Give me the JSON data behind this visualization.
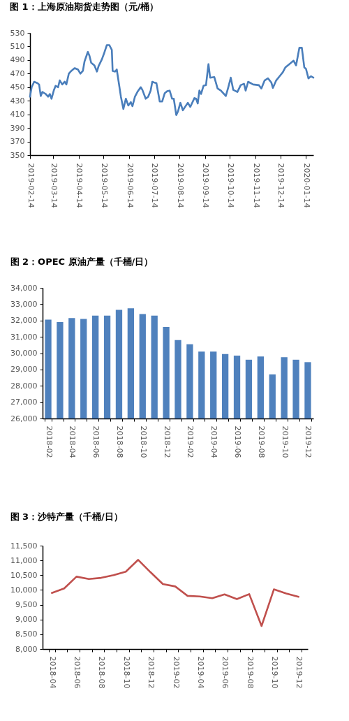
{
  "chart_data": [
    {
      "type": "line",
      "title": "图 1：上海原油期货走势图（元/桶）",
      "color": "#4a7ebb",
      "x": [
        "2019-02-14",
        "2019-02-16",
        "2019-02-19",
        "2019-02-23",
        "2019-02-25",
        "2019-02-27",
        "2019-03-01",
        "2019-03-05",
        "2019-03-08",
        "2019-03-10",
        "2019-03-12",
        "2019-03-15",
        "2019-03-17",
        "2019-03-20",
        "2019-03-22",
        "2019-03-25",
        "2019-03-28",
        "2019-03-30",
        "2019-04-02",
        "2019-04-05",
        "2019-04-09",
        "2019-04-13",
        "2019-04-16",
        "2019-04-19",
        "2019-04-21",
        "2019-04-25",
        "2019-04-27",
        "2019-04-29",
        "2019-05-03",
        "2019-05-06",
        "2019-05-08",
        "2019-05-12",
        "2019-05-15",
        "2019-05-18",
        "2019-05-21",
        "2019-05-24",
        "2019-05-25",
        "2019-05-28",
        "2019-05-30",
        "2019-06-01",
        "2019-06-04",
        "2019-06-07",
        "2019-06-10",
        "2019-06-13",
        "2019-06-16",
        "2019-06-18",
        "2019-06-21",
        "2019-06-24",
        "2019-06-28",
        "2019-06-30",
        "2019-07-04",
        "2019-07-07",
        "2019-07-10",
        "2019-07-12",
        "2019-07-14",
        "2019-07-17",
        "2019-07-21",
        "2019-07-24",
        "2019-07-27",
        "2019-07-30",
        "2019-08-02",
        "2019-08-05",
        "2019-08-07",
        "2019-08-10",
        "2019-08-12",
        "2019-08-15",
        "2019-08-18",
        "2019-08-24",
        "2019-08-27",
        "2019-09-01",
        "2019-09-03",
        "2019-09-05",
        "2019-09-07",
        "2019-09-09",
        "2019-09-12",
        "2019-09-15",
        "2019-09-18",
        "2019-09-20",
        "2019-09-25",
        "2019-09-29",
        "2019-10-03",
        "2019-10-09",
        "2019-10-12",
        "2019-10-15",
        "2019-10-18",
        "2019-10-23",
        "2019-10-27",
        "2019-10-31",
        "2019-11-02",
        "2019-11-05",
        "2019-11-11",
        "2019-11-18",
        "2019-11-21",
        "2019-11-25",
        "2019-11-29",
        "2019-12-03",
        "2019-12-05",
        "2019-12-09",
        "2019-12-13",
        "2019-12-17",
        "2019-12-20",
        "2019-12-25",
        "2019-12-30",
        "2020-01-02",
        "2020-01-06",
        "2020-01-09",
        "2020-01-12",
        "2020-01-14",
        "2020-01-17",
        "2020-01-20",
        "2020-01-23"
      ],
      "values": [
        436,
        450,
        458,
        456,
        454,
        437,
        443,
        440,
        436,
        440,
        433,
        446,
        452,
        450,
        460,
        454,
        458,
        454,
        470,
        474,
        478,
        476,
        470,
        474,
        488,
        502,
        496,
        486,
        482,
        473,
        481,
        491,
        501,
        512,
        512,
        505,
        474,
        473,
        476,
        460,
        436,
        418,
        433,
        423,
        428,
        422,
        436,
        443,
        450,
        446,
        433,
        436,
        445,
        458,
        457,
        456,
        429,
        429,
        441,
        444,
        445,
        433,
        433,
        409,
        414,
        427,
        416,
        427,
        421,
        434,
        433,
        426,
        445,
        440,
        452,
        453,
        484,
        464,
        465,
        448,
        445,
        437,
        450,
        464,
        446,
        443,
        453,
        455,
        445,
        458,
        454,
        453,
        448,
        460,
        463,
        457,
        449,
        460,
        466,
        472,
        479,
        484,
        489,
        482,
        508,
        508,
        479,
        477,
        463,
        466,
        464
      ],
      "xlim": [
        "2019-02-14",
        "2020-01-23"
      ],
      "xticks": [
        "2019-02-14",
        "2019-03-14",
        "2019-04-14",
        "2019-05-14",
        "2019-06-14",
        "2019-07-14",
        "2019-08-14",
        "2019-09-14",
        "2019-10-14",
        "2019-11-14",
        "2019-12-14",
        "2020-01-14"
      ],
      "ylim": [
        350,
        530
      ],
      "yticks": [
        350,
        370,
        390,
        410,
        430,
        450,
        470,
        490,
        510,
        530
      ]
    },
    {
      "type": "bar",
      "title": "图 2：OPEC 原油产量（千桶/日）",
      "color": "#4f81bd",
      "categories": [
        "2018-02",
        null,
        "2018-04",
        null,
        "2018-06",
        null,
        "2018-08",
        null,
        "2018-10",
        null,
        "2018-12",
        null,
        "2019-02",
        null,
        "2019-04",
        null,
        "2019-06",
        null,
        "2019-08",
        null,
        "2019-10",
        null,
        "2019-12"
      ],
      "values": [
        32050,
        31900,
        32150,
        32100,
        32300,
        32300,
        32650,
        32750,
        32400,
        32300,
        31600,
        30800,
        30550,
        30100,
        30100,
        29950,
        29850,
        29600,
        29800,
        28700,
        29750,
        29600,
        29450
      ],
      "ylim": [
        26000,
        34000
      ],
      "yticks": [
        {
          "value": 26000,
          "label": "26,000"
        },
        {
          "value": 27000,
          "label": "27,000"
        },
        {
          "value": 28000,
          "label": "28,000"
        },
        {
          "value": 29000,
          "label": "29,000"
        },
        {
          "value": 30000,
          "label": "30,000"
        },
        {
          "value": 31000,
          "label": "31,000"
        },
        {
          "value": 32000,
          "label": "32,000"
        },
        {
          "value": 33000,
          "label": "33,000"
        },
        {
          "value": 34000,
          "label": "34,000"
        }
      ]
    },
    {
      "type": "line",
      "title": "图 3：沙特产量（千桶/日）",
      "color": "#c0504d",
      "categories": [
        "2018-04",
        null,
        "2018-06",
        null,
        "2018-08",
        null,
        "2018-10",
        null,
        "2018-12",
        null,
        "2019-02",
        null,
        "2019-04",
        null,
        "2019-06",
        null,
        "2019-08",
        null,
        "2019-10",
        null,
        "2019-12"
      ],
      "values": [
        9900,
        10050,
        10450,
        10370,
        10410,
        10500,
        10620,
        11020,
        10600,
        10200,
        10120,
        9800,
        9780,
        9720,
        9850,
        9690,
        9860,
        8780,
        10020,
        9880,
        9770
      ],
      "ylim": [
        8000,
        11500
      ],
      "yticks": [
        {
          "value": 8000,
          "label": "8,000"
        },
        {
          "value": 8500,
          "label": "8,500"
        },
        {
          "value": 9000,
          "label": "9,000"
        },
        {
          "value": 9500,
          "label": "9,500"
        },
        {
          "value": 10000,
          "label": "10,000"
        },
        {
          "value": 10500,
          "label": "10,500"
        },
        {
          "value": 11000,
          "label": "11,000"
        },
        {
          "value": 11500,
          "label": "11,500"
        }
      ]
    }
  ]
}
